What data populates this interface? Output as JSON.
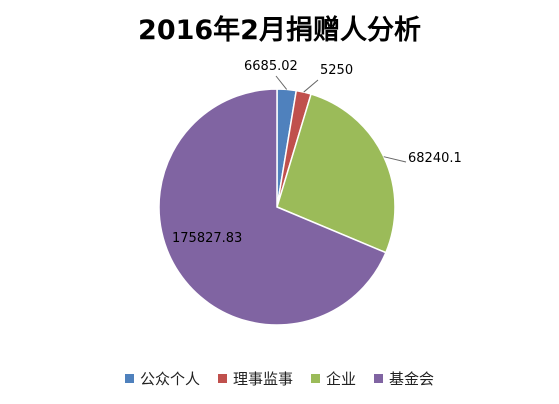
{
  "chart_data": {
    "type": "pie",
    "title": "2016年2月捐赠人分析",
    "categories": [
      "公众个人",
      "理事监事",
      "企业",
      "基金会"
    ],
    "values": [
      6685.02,
      5250,
      68240.1,
      175827.83
    ],
    "data_labels": [
      "6685.02",
      "5250",
      "68240.1",
      "175827.83"
    ],
    "colors": [
      "#4F81BD",
      "#C0504D",
      "#9BBB59",
      "#8064A2"
    ],
    "legend_position": "bottom"
  }
}
